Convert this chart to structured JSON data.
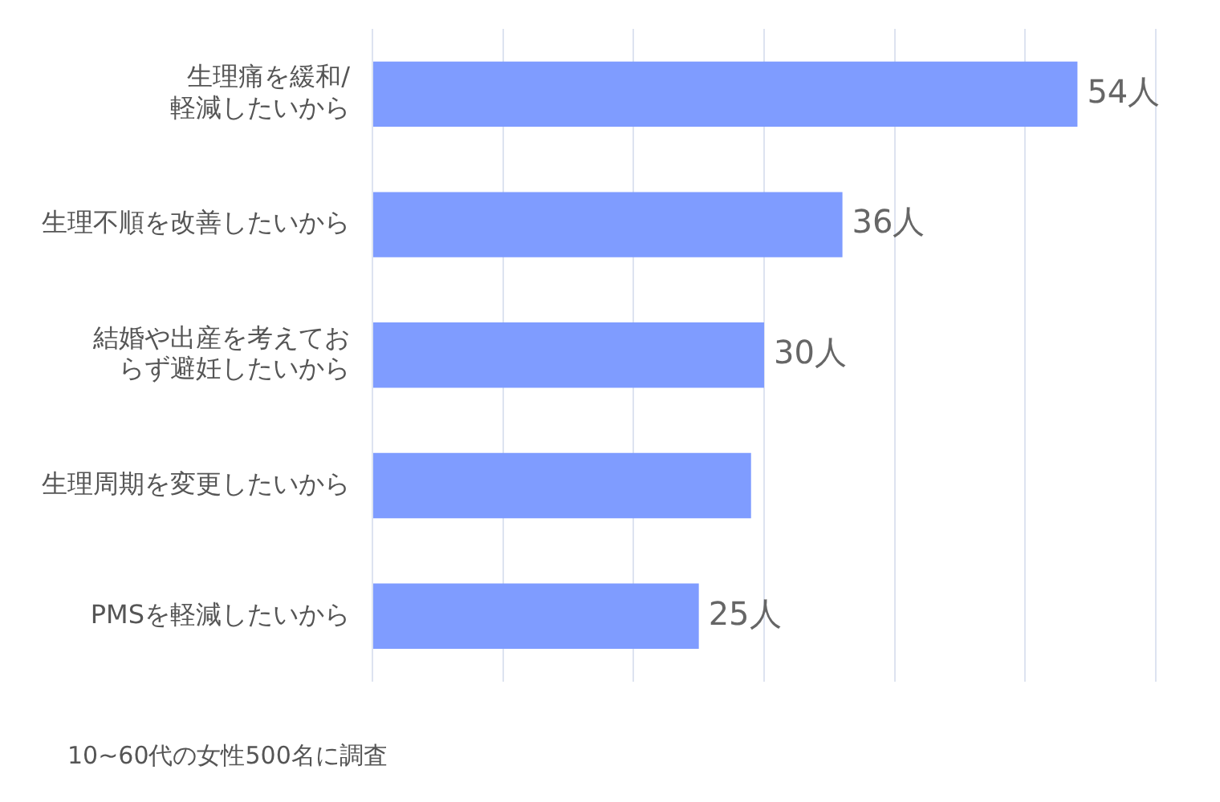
{
  "chart_data": {
    "type": "bar",
    "orientation": "horizontal",
    "categories": [
      "生理痛を緩和/軽減したいから",
      "生理不順を改善したいから",
      "結婚や出産を考えておらず避妊したいから",
      "生理周期を変更したいから",
      "PMSを軽減したいから"
    ],
    "values": [
      54,
      36,
      30,
      29,
      25
    ],
    "value_labels": [
      "54人",
      "36人",
      "30人",
      null,
      "25人"
    ],
    "color": "#7f9cff",
    "xlim": [
      0,
      60
    ],
    "xticks": [
      {
        "value": 0,
        "label": null
      },
      {
        "value": 10,
        "label": null
      },
      {
        "value": 20,
        "label": null
      },
      {
        "value": 30,
        "label": null
      },
      {
        "value": 40,
        "label": null
      },
      {
        "value": 50,
        "label": null
      },
      {
        "value": 60,
        "label": null
      }
    ],
    "grid": "x",
    "tick_labels": "y",
    "annotations": [
      "10~60代の女性500名に調査"
    ]
  }
}
